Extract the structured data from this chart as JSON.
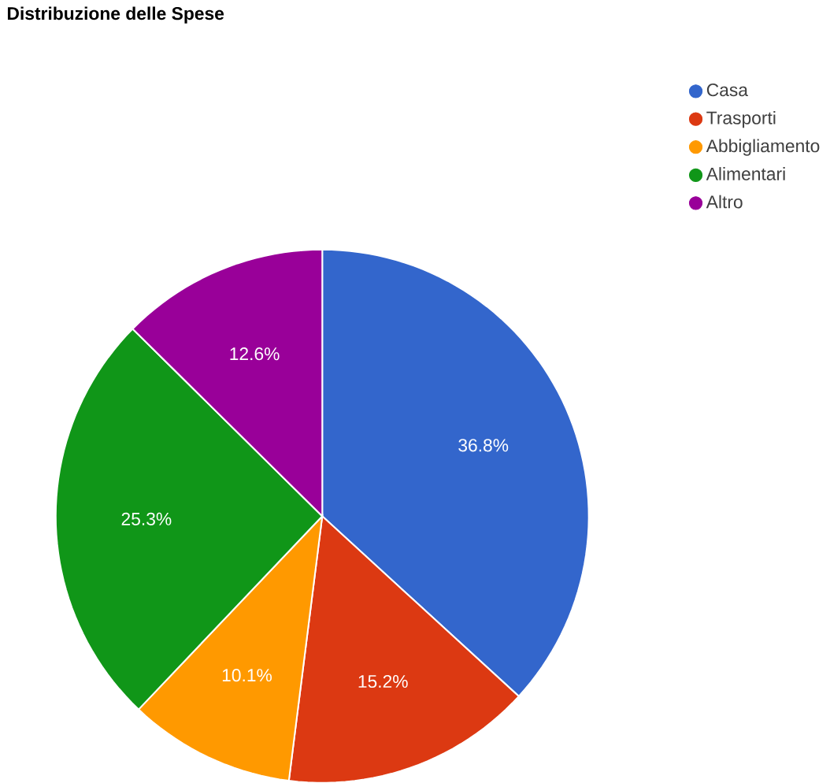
{
  "chart_data": {
    "type": "pie",
    "title": "Distribuzione delle Spese",
    "categories": [
      "Casa",
      "Trasporti",
      "Abbigliamento",
      "Alimentari",
      "Altro"
    ],
    "values": [
      36.8,
      15.2,
      10.1,
      25.3,
      12.6
    ],
    "colors": [
      "#3366cc",
      "#dc3912",
      "#ff9900",
      "#109618",
      "#990099"
    ],
    "value_labels": [
      "36.8%",
      "15.2%",
      "10.1%",
      "25.3%",
      "12.6%"
    ],
    "legend": "right"
  }
}
